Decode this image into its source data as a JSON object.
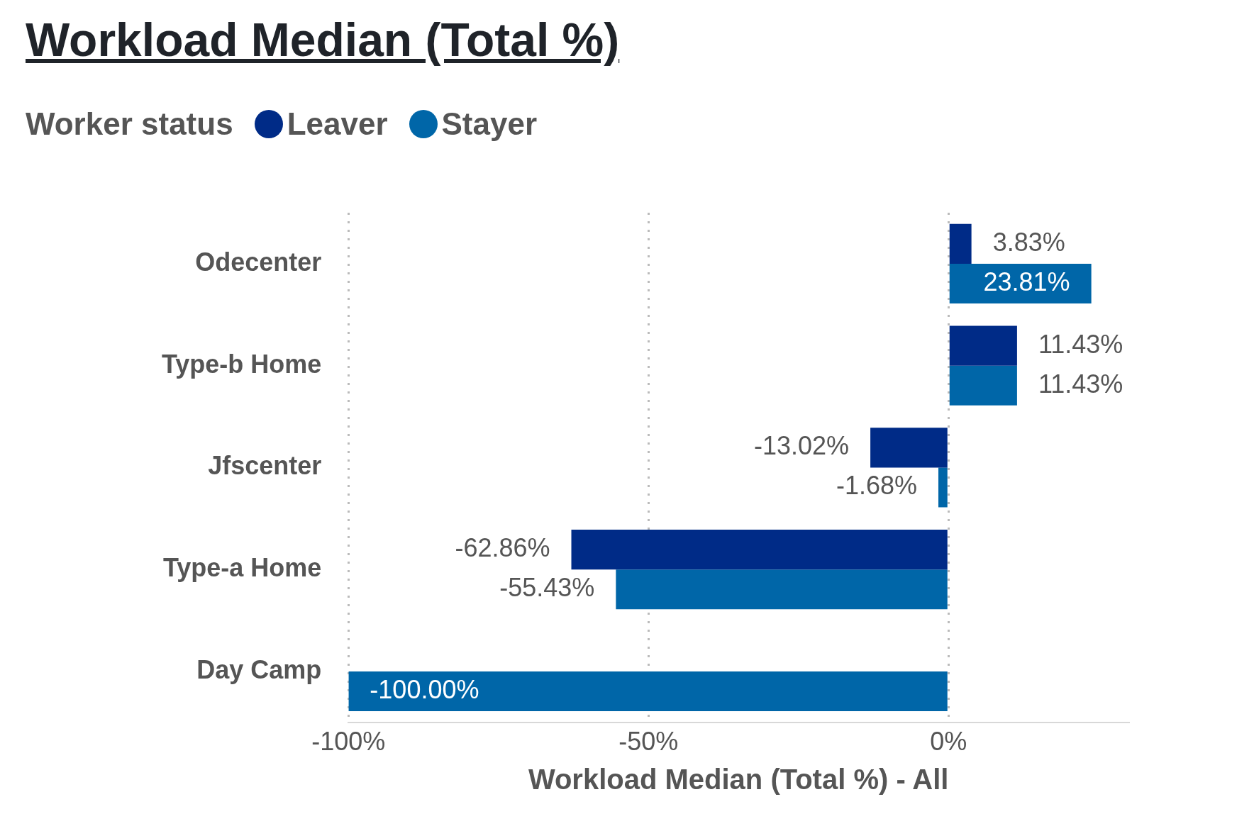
{
  "chart_data": {
    "type": "bar",
    "orientation": "horizontal",
    "title": "Workload Median (Total %)",
    "xlabel": "Workload Median (Total %) - All",
    "legend_title": "Worker status",
    "legend": "top left",
    "grid": "x",
    "categories": [
      "Odecenter",
      "Type-b Home",
      "Jfscenter",
      "Type-a Home",
      "Day Camp"
    ],
    "series": [
      {
        "name": "Leaver",
        "color": "#002b87",
        "values": [
          3.83,
          11.43,
          -13.02,
          -62.86,
          null
        ],
        "value_labels": [
          "3.83%",
          "11.43%",
          "-13.02%",
          "-62.86%",
          null
        ]
      },
      {
        "name": "Stayer",
        "color": "#0066a8",
        "values": [
          23.81,
          11.43,
          -1.68,
          -55.43,
          -100.0
        ],
        "value_labels": [
          "23.81%",
          "11.43%",
          "-1.68%",
          "-55.43%",
          "-100.00%"
        ]
      }
    ],
    "xlim": [
      -100,
      30
    ],
    "xticks": [
      {
        "value": -100,
        "label": "-100%"
      },
      {
        "value": -50,
        "label": "-50%"
      },
      {
        "value": 0,
        "label": "0%"
      }
    ]
  }
}
